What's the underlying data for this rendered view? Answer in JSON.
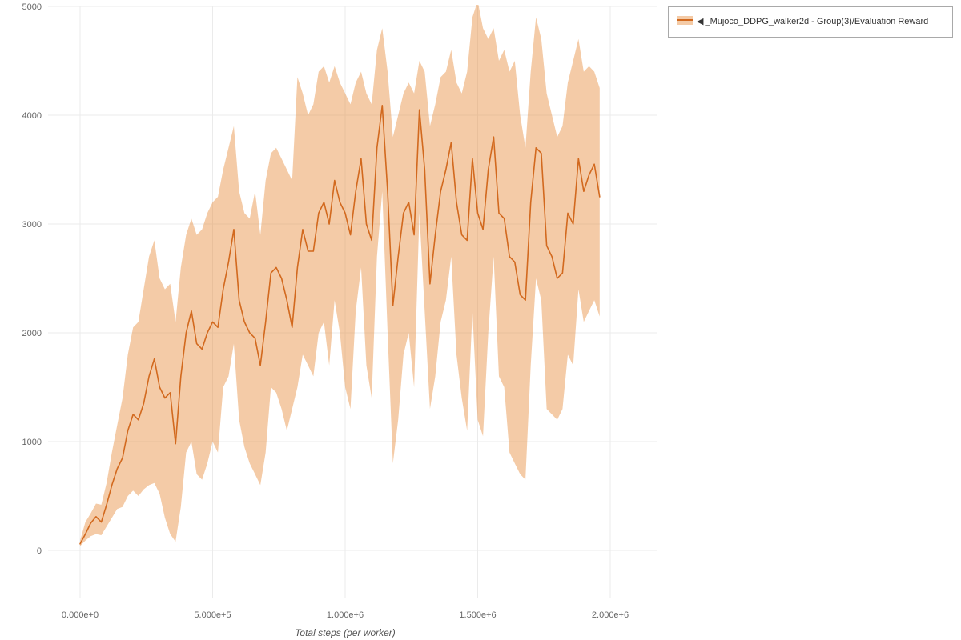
{
  "legend": {
    "marker": "◀",
    "label": "_Mujoco_DDPG_walker2d - Group(3)/Evaluation Reward"
  },
  "chart_data": {
    "type": "line",
    "title": "",
    "xlabel": "Total steps (per worker)",
    "ylabel": "",
    "xlim": [
      0,
      2000000
    ],
    "ylim": [
      0,
      5000
    ],
    "grid": true,
    "legend_position": "top-right",
    "x_ticks": [
      {
        "value": 0,
        "label": "0.000e+0"
      },
      {
        "value": 500000,
        "label": "5.000e+5"
      },
      {
        "value": 1000000,
        "label": "1.000e+6"
      },
      {
        "value": 1500000,
        "label": "1.500e+6"
      },
      {
        "value": 2000000,
        "label": "2.000e+6"
      }
    ],
    "y_ticks": [
      {
        "value": 0,
        "label": "0"
      },
      {
        "value": 1000,
        "label": "1000"
      },
      {
        "value": 2000,
        "label": "2000"
      },
      {
        "value": 3000,
        "label": "3000"
      },
      {
        "value": 4000,
        "label": "4000"
      },
      {
        "value": 5000,
        "label": "5000"
      }
    ],
    "series": [
      {
        "name": "_Mujoco_DDPG_walker2d - Group(3)/Evaluation Reward",
        "line_color": "#d2691e",
        "band_color": "#e78b3c",
        "band_opacity": 0.45,
        "x": {
          "start": 0,
          "step": 20000,
          "count": 99
        },
        "mean": [
          60,
          150,
          250,
          310,
          260,
          420,
          600,
          750,
          850,
          1100,
          1250,
          1200,
          1350,
          1600,
          1760,
          1500,
          1400,
          1450,
          980,
          1600,
          2000,
          2200,
          1900,
          1850,
          2000,
          2100,
          2050,
          2400,
          2650,
          2950,
          2300,
          2100,
          2000,
          1950,
          1700,
          2100,
          2550,
          2600,
          2500,
          2300,
          2050,
          2600,
          2950,
          2750,
          2750,
          3100,
          3200,
          3000,
          3400,
          3200,
          3100,
          2900,
          3300,
          3600,
          3000,
          2850,
          3700,
          4090,
          3300,
          2250,
          2700,
          3100,
          3200,
          2900,
          4050,
          3500,
          2450,
          2900,
          3300,
          3500,
          3750,
          3200,
          2900,
          2850,
          3600,
          3100,
          2950,
          3500,
          3800,
          3100,
          3050,
          2700,
          2650,
          2350,
          2300,
          3200,
          3700,
          3650,
          2800,
          2700,
          2500,
          2550,
          3100,
          3000,
          3600,
          3300,
          3450,
          3550,
          3250
        ],
        "low": [
          40,
          90,
          130,
          150,
          140,
          220,
          300,
          380,
          400,
          500,
          550,
          500,
          560,
          600,
          620,
          520,
          300,
          150,
          80,
          400,
          900,
          1000,
          700,
          650,
          800,
          1000,
          900,
          1500,
          1600,
          1900,
          1200,
          950,
          800,
          700,
          600,
          900,
          1500,
          1450,
          1300,
          1100,
          1300,
          1500,
          1800,
          1700,
          1600,
          2000,
          2100,
          1700,
          2300,
          2000,
          1500,
          1300,
          2200,
          2600,
          1700,
          1400,
          2700,
          3300,
          2000,
          800,
          1200,
          1800,
          2000,
          1500,
          3100,
          2200,
          1300,
          1600,
          2100,
          2300,
          2700,
          1800,
          1400,
          1100,
          2200,
          1200,
          1050,
          2000,
          2700,
          1600,
          1500,
          900,
          800,
          700,
          650,
          1700,
          2500,
          2300,
          1300,
          1250,
          1200,
          1300,
          1800,
          1700,
          2400,
          2100,
          2200,
          2300,
          2150
        ],
        "high": [
          90,
          260,
          340,
          430,
          420,
          620,
          900,
          1150,
          1400,
          1800,
          2050,
          2100,
          2400,
          2700,
          2850,
          2500,
          2400,
          2450,
          2100,
          2600,
          2900,
          3050,
          2900,
          2950,
          3100,
          3200,
          3250,
          3500,
          3700,
          3900,
          3300,
          3100,
          3050,
          3300,
          2900,
          3400,
          3650,
          3700,
          3600,
          3500,
          3400,
          4350,
          4200,
          4000,
          4100,
          4400,
          4450,
          4300,
          4450,
          4300,
          4200,
          4100,
          4300,
          4400,
          4200,
          4100,
          4600,
          4800,
          4400,
          3800,
          4000,
          4200,
          4300,
          4200,
          4500,
          4400,
          3900,
          4100,
          4350,
          4400,
          4600,
          4300,
          4200,
          4400,
          4900,
          5050,
          4800,
          4700,
          4800,
          4500,
          4600,
          4400,
          4500,
          4000,
          3700,
          4400,
          4900,
          4700,
          4200,
          4000,
          3800,
          3900,
          4300,
          4500,
          4700,
          4400,
          4450,
          4400,
          4250
        ]
      }
    ]
  }
}
